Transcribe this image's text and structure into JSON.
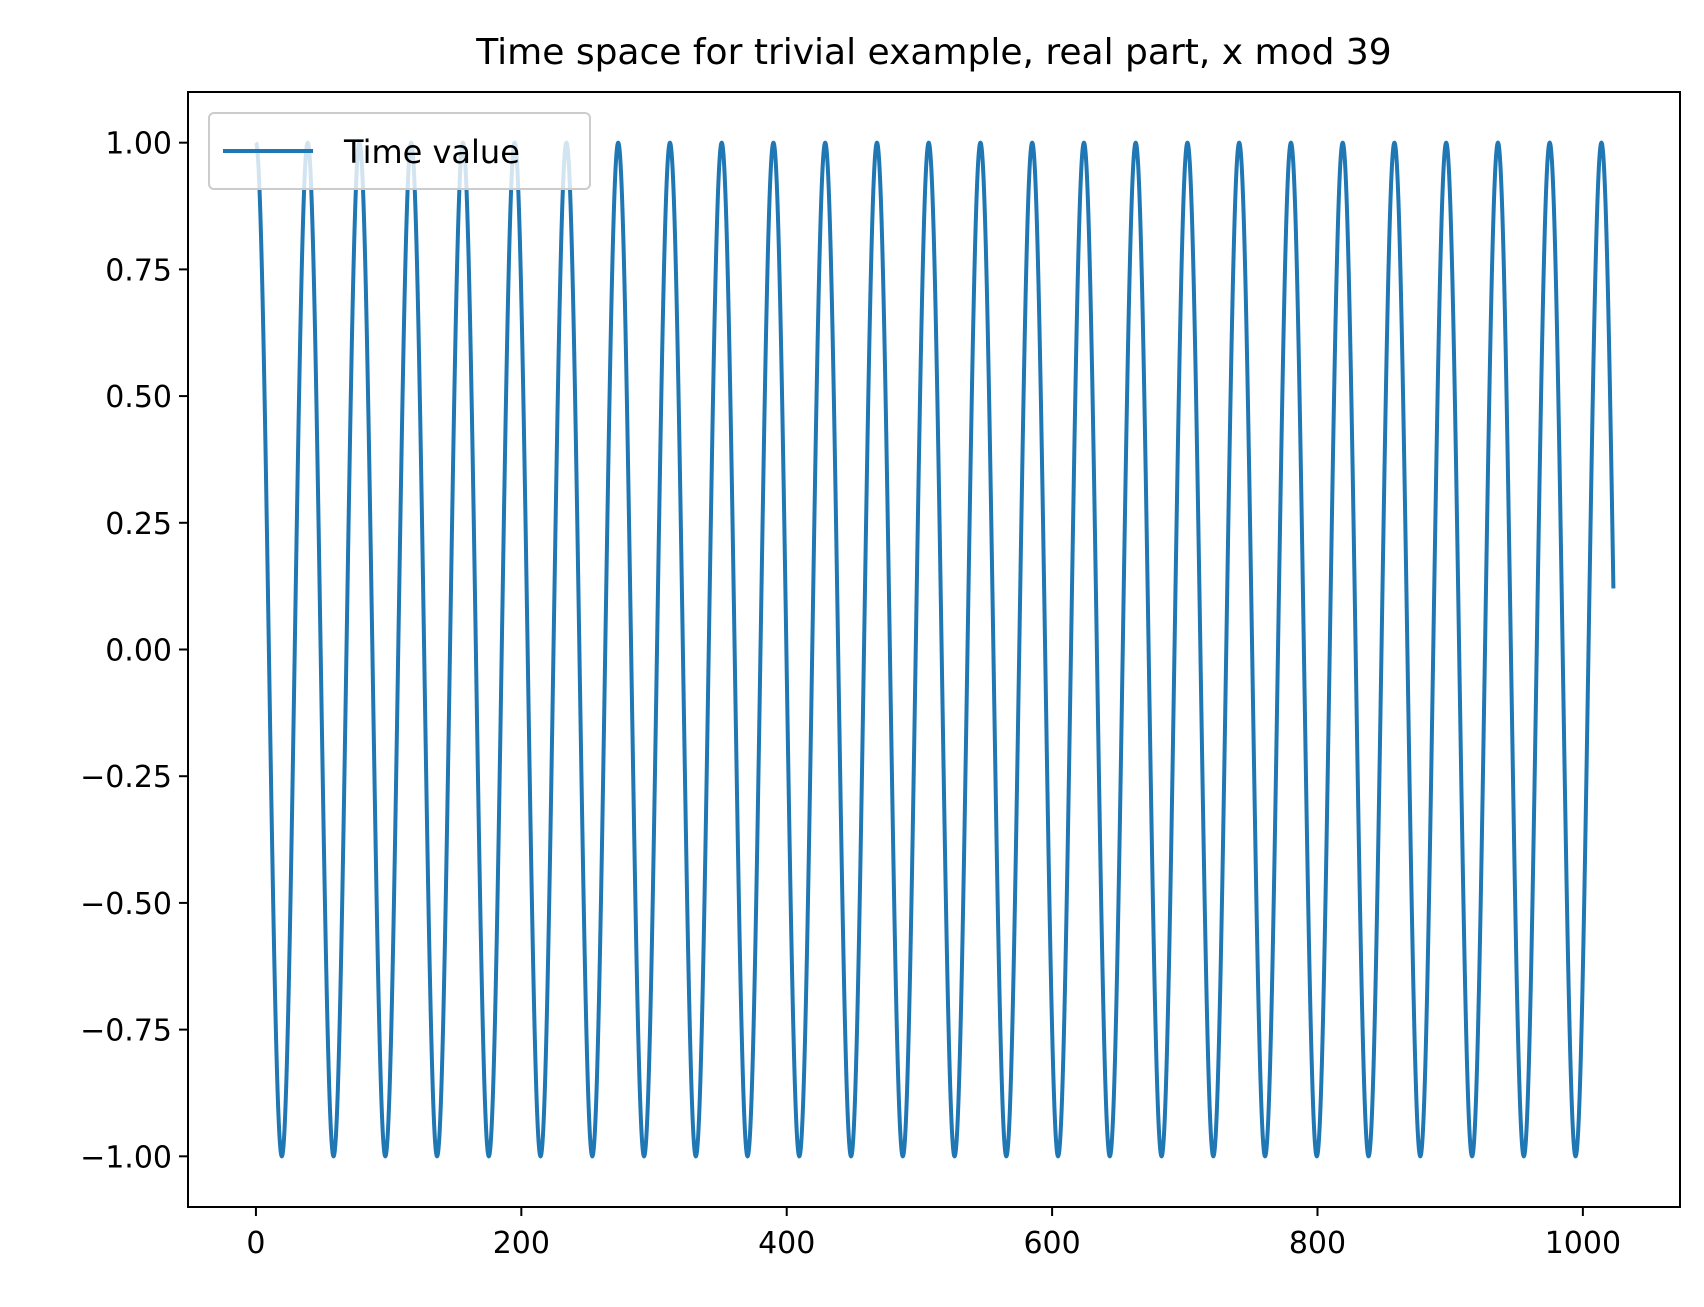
{
  "chart_data": {
    "type": "line",
    "title": "Time space for trivial example, real part, x mod 39",
    "xlabel": "",
    "ylabel": "",
    "xlim": [
      -51.2,
      1073.2
    ],
    "ylim": [
      -1.1,
      1.1
    ],
    "x_ticks": [
      0,
      200,
      400,
      600,
      800,
      1000
    ],
    "x_tick_labels": [
      "0",
      "200",
      "400",
      "600",
      "800",
      "1000"
    ],
    "y_ticks": [
      1.0,
      0.75,
      0.5,
      0.25,
      0.0,
      -0.25,
      -0.5,
      -0.75,
      -1.0
    ],
    "y_tick_labels": [
      "1.00",
      "0.75",
      "0.50",
      "0.25",
      "0.00",
      "−0.25",
      "−0.50",
      "−0.75",
      "−1.00"
    ],
    "grid": false,
    "legend_position": "upper-left",
    "series": [
      {
        "name": "Time value",
        "color": "#1f77b4",
        "function": "cos(2*pi*(x mod 39)/39)",
        "x_start": 0,
        "x_end": 1023,
        "period": 39
      }
    ]
  }
}
